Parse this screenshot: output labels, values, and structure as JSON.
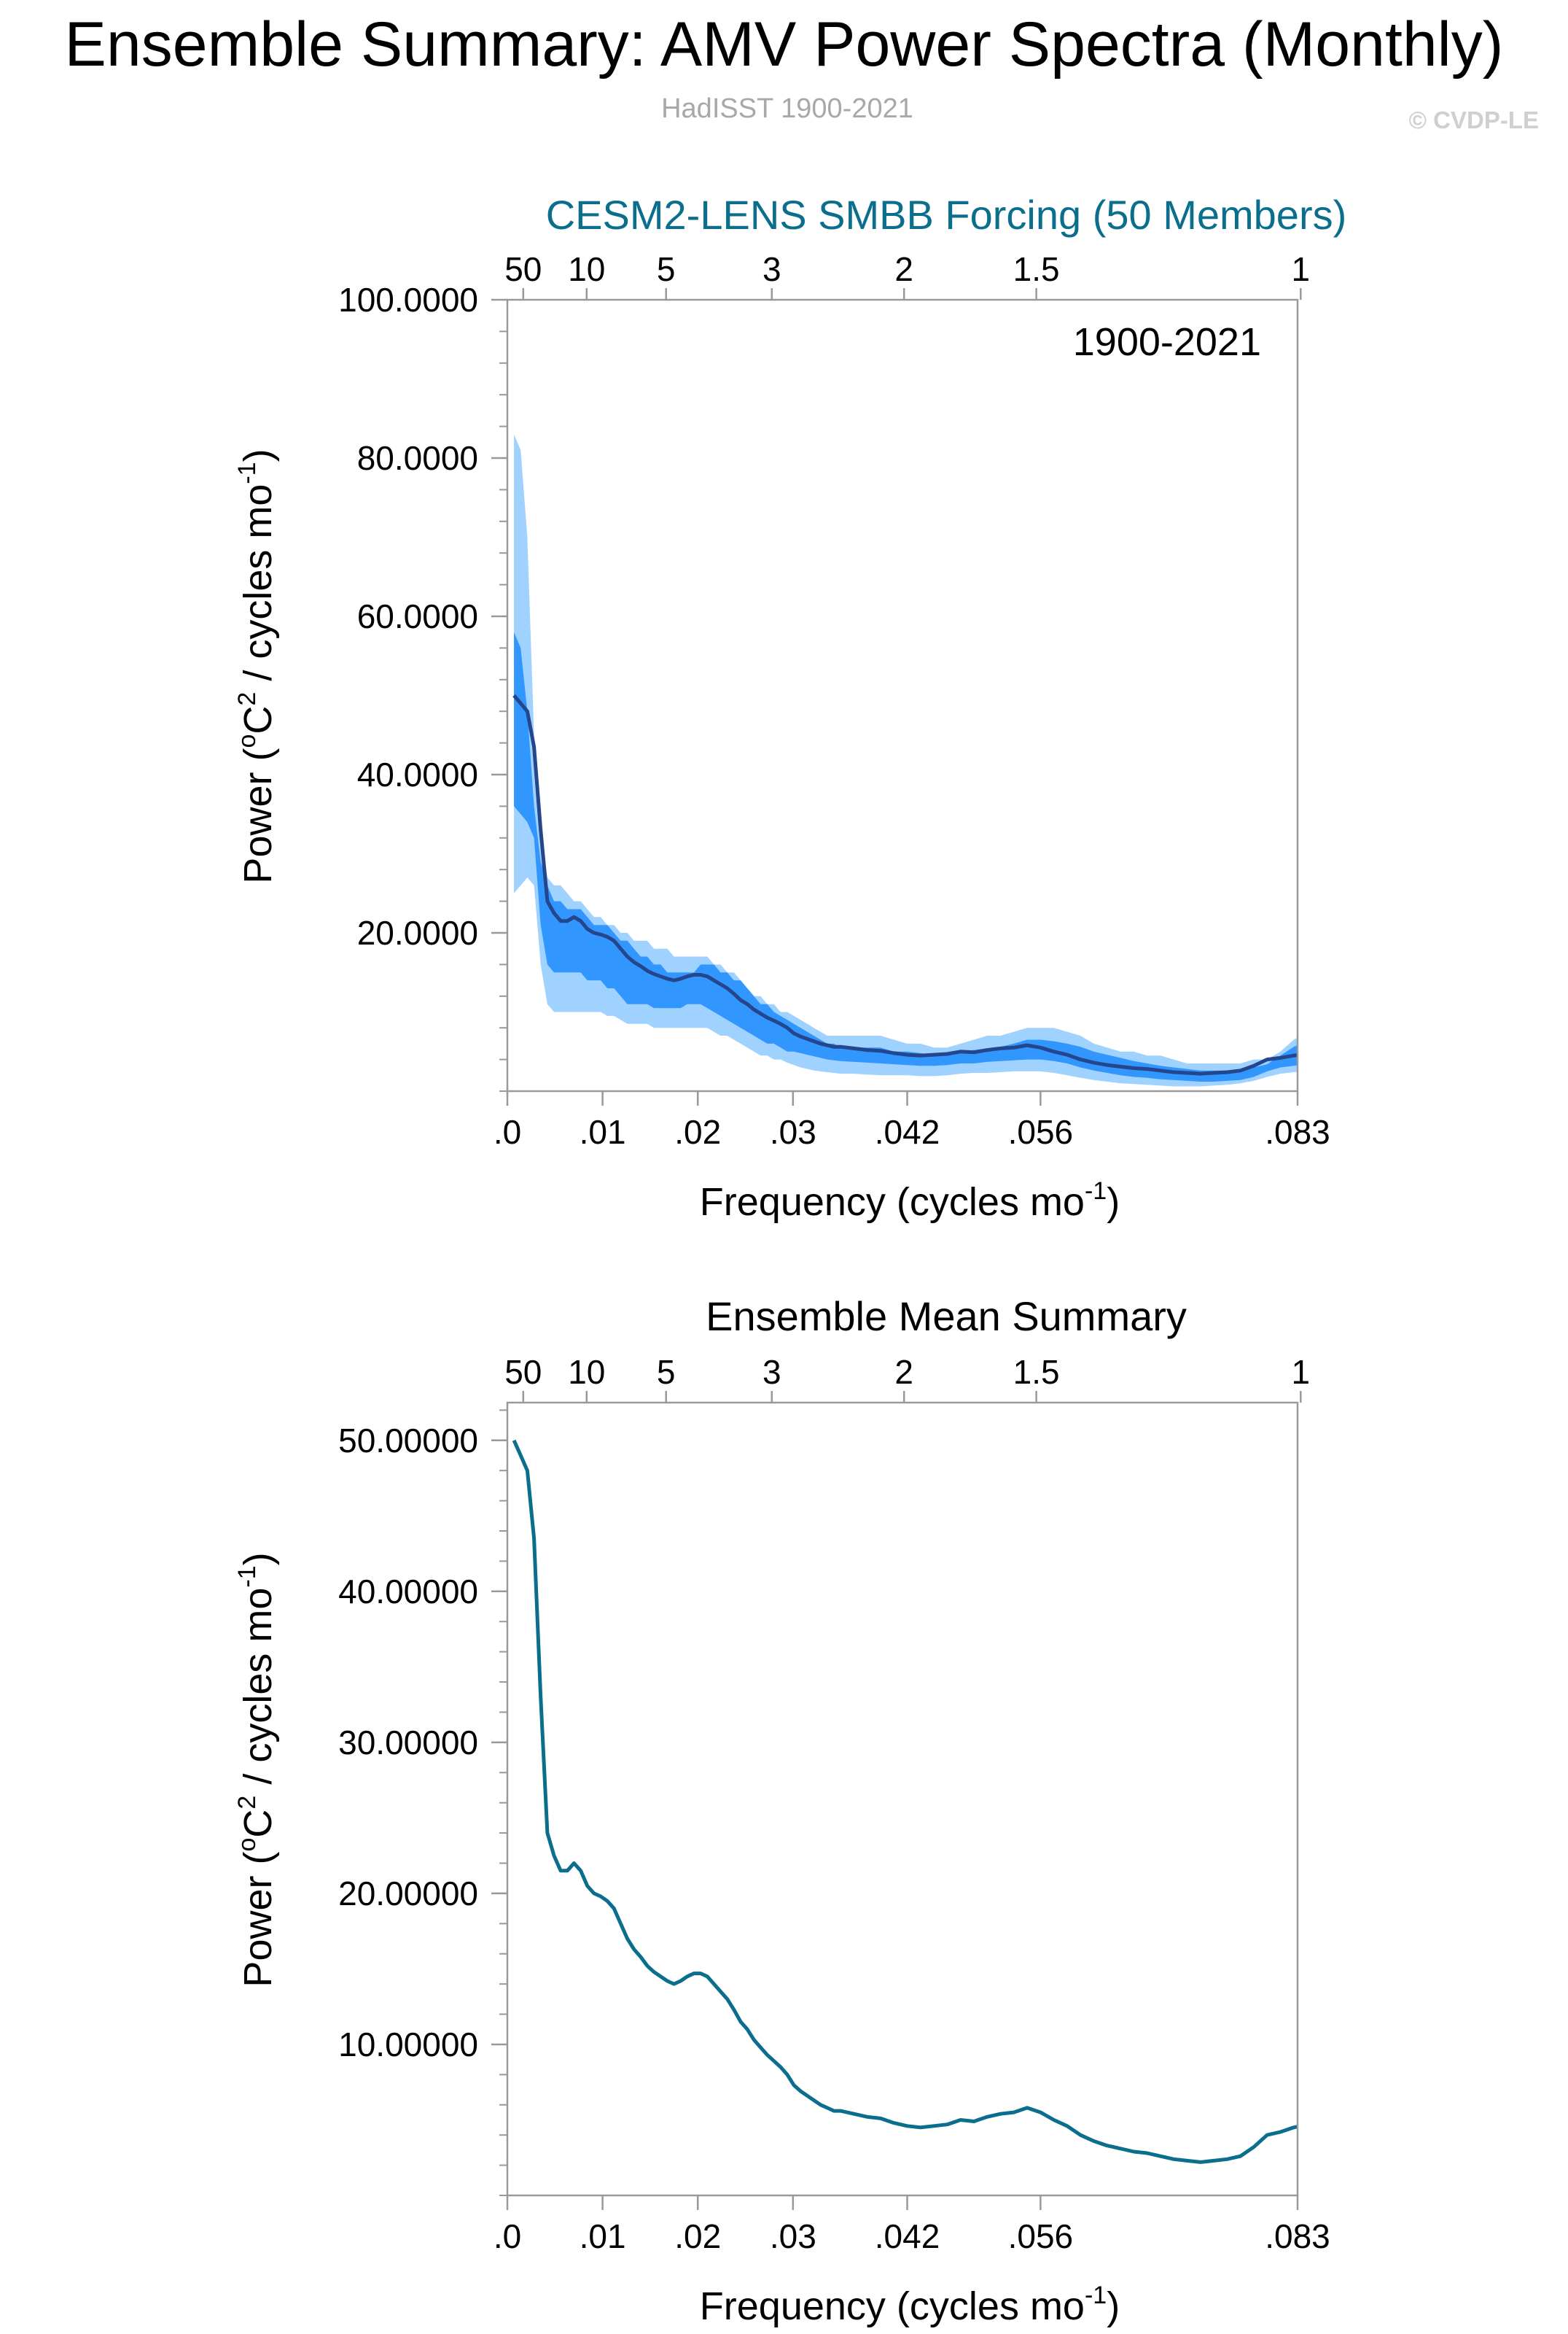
{
  "page": {
    "title": "Ensemble Summary: AMV Power Spectra (Monthly)",
    "subtitle": "HadISST 1900-2021",
    "copyright": "© CVDP-LE"
  },
  "colors": {
    "outer_band": "#a0d2ff",
    "inner_band": "#3296ff",
    "ensemble_line": "#23468c",
    "mean_line": "#0a6e8c",
    "panel1_title": "#0a6e8c"
  },
  "chart_data": [
    {
      "type": "area",
      "title": "CESM2-LENS SMBB Forcing (50 Members)",
      "annotation": "1900-2021",
      "xlabel": "Frequency (cycles mo",
      "xlabel_sup": "-1",
      "xlabel_tail": ")",
      "ylabel": "Power (",
      "ylabel_sup1": "o",
      "ylabel_mid": "C",
      "ylabel_sup2": "2",
      "ylabel_tail": " / cycles mo",
      "ylabel_sup3": "-1",
      "ylabel_end": ")",
      "xlim": [
        0,
        0.083
      ],
      "ylim": [
        0,
        100
      ],
      "ytick_values": [
        20,
        40,
        60,
        80,
        100
      ],
      "ytick_labels": [
        "20.0000",
        "40.0000",
        "60.0000",
        "80.0000",
        "100.0000"
      ],
      "xtick_values": [
        0,
        0.01,
        0.02,
        0.03,
        0.042,
        0.056,
        0.083
      ],
      "xtick_labels": [
        ".0",
        ".01",
        ".02",
        ".03",
        ".042",
        ".056",
        ".083"
      ],
      "top_ticks": [
        {
          "value": 0.00167,
          "label": "50"
        },
        {
          "value": 0.00833,
          "label": "10"
        },
        {
          "value": 0.01667,
          "label": "5"
        },
        {
          "value": 0.02778,
          "label": "3"
        },
        {
          "value": 0.04167,
          "label": "2"
        },
        {
          "value": 0.05556,
          "label": "1.5"
        },
        {
          "value": 0.08333,
          "label": "1"
        }
      ],
      "x": [
        0.0007,
        0.0014,
        0.0021,
        0.0028,
        0.0035,
        0.0042,
        0.0049,
        0.0056,
        0.0063,
        0.007,
        0.0077,
        0.0084,
        0.0091,
        0.0098,
        0.0105,
        0.0112,
        0.0119,
        0.0126,
        0.0133,
        0.014,
        0.0147,
        0.0154,
        0.0161,
        0.0168,
        0.0175,
        0.0182,
        0.0189,
        0.0196,
        0.0203,
        0.021,
        0.0217,
        0.0224,
        0.0231,
        0.0238,
        0.0245,
        0.0252,
        0.0259,
        0.0266,
        0.0273,
        0.028,
        0.0287,
        0.0294,
        0.0301,
        0.0308,
        0.0315,
        0.0322,
        0.0329,
        0.0336,
        0.0343,
        0.035,
        0.0364,
        0.0378,
        0.0392,
        0.0406,
        0.042,
        0.0434,
        0.0448,
        0.0462,
        0.0476,
        0.049,
        0.0504,
        0.0518,
        0.0532,
        0.0546,
        0.056,
        0.0574,
        0.0588,
        0.0602,
        0.0616,
        0.063,
        0.0644,
        0.0658,
        0.0672,
        0.0686,
        0.07,
        0.0714,
        0.0728,
        0.0742,
        0.0756,
        0.077,
        0.0784,
        0.0798,
        0.0812,
        0.0826,
        0.0833
      ],
      "series": [
        {
          "role": "max",
          "values": [
            83,
            81,
            70,
            45,
            33,
            27,
            26,
            26,
            25,
            24,
            24,
            23,
            22,
            22,
            21,
            21,
            20,
            20,
            19,
            19,
            19,
            18,
            18,
            18,
            17,
            17,
            17,
            17,
            17,
            17,
            16,
            16,
            15,
            15,
            14,
            13,
            12,
            12,
            11,
            11,
            10,
            10,
            9.5,
            9,
            8.5,
            8,
            7.5,
            7,
            7,
            7,
            7,
            7,
            7,
            6.5,
            6,
            6,
            5.5,
            5.5,
            6,
            6.5,
            7,
            7,
            7.5,
            8,
            8,
            8,
            7.5,
            7,
            6,
            5.5,
            5,
            5,
            4.5,
            4.5,
            4,
            3.5,
            3.5,
            3.5,
            3.5,
            3.5,
            4,
            4,
            5,
            6.5,
            7
          ]
        },
        {
          "role": "q75",
          "values": [
            58,
            56,
            48,
            36,
            29,
            26,
            24,
            24,
            23,
            23,
            23,
            22,
            21,
            21,
            21,
            20,
            19,
            19,
            18,
            17,
            17,
            16,
            16,
            15,
            15,
            15,
            15,
            15,
            16,
            16,
            16,
            15,
            15,
            14,
            14,
            13,
            12,
            11,
            11,
            10,
            9.5,
            9,
            8.5,
            8,
            7.5,
            7,
            6.5,
            6,
            6,
            5.5,
            5.5,
            5.5,
            5.5,
            5,
            5,
            4.8,
            4.6,
            4.6,
            5,
            5.2,
            5.4,
            5.6,
            6,
            6.5,
            6.5,
            6.3,
            6,
            5.6,
            5,
            4.6,
            4.2,
            3.8,
            3.5,
            3.2,
            3,
            2.8,
            2.6,
            2.6,
            2.6,
            2.8,
            3,
            3.4,
            4.5,
            5.6,
            6
          ]
        },
        {
          "role": "mean",
          "values": [
            50,
            49,
            48,
            43.5,
            33,
            24,
            22.5,
            21.5,
            21.5,
            22,
            21.5,
            20.5,
            20,
            19.8,
            19.5,
            19,
            18,
            17,
            16.3,
            15.8,
            15.2,
            14.8,
            14.5,
            14.2,
            14,
            14.2,
            14.5,
            14.7,
            14.7,
            14.5,
            14,
            13.5,
            13,
            12.3,
            11.5,
            11,
            10.3,
            9.8,
            9.3,
            8.9,
            8.5,
            8.0,
            7.3,
            6.9,
            6.6,
            6.3,
            6.0,
            5.8,
            5.6,
            5.6,
            5.4,
            5.2,
            5.1,
            4.8,
            4.6,
            4.5,
            4.6,
            4.7,
            5.0,
            4.9,
            5.2,
            5.4,
            5.5,
            5.8,
            5.5,
            5.0,
            4.6,
            4.0,
            3.6,
            3.3,
            3.1,
            2.9,
            2.8,
            2.6,
            2.4,
            2.3,
            2.2,
            2.3,
            2.4,
            2.6,
            3.2,
            4.0,
            4.2,
            4.5,
            4.6
          ]
        },
        {
          "role": "q25",
          "values": [
            36,
            35,
            34,
            32,
            21,
            16,
            15,
            15,
            15,
            15,
            15,
            14,
            14,
            14,
            13,
            13,
            12,
            11,
            11,
            11,
            11,
            10.5,
            10.5,
            10.5,
            10.5,
            10.5,
            11,
            11,
            11,
            10.5,
            10,
            9.5,
            9,
            8.5,
            8,
            7.5,
            7,
            6.5,
            6,
            6,
            5.5,
            5,
            5,
            4.8,
            4.6,
            4.4,
            4.2,
            4,
            3.9,
            3.8,
            3.7,
            3.6,
            3.5,
            3.4,
            3.3,
            3.2,
            3.2,
            3.3,
            3.5,
            3.5,
            3.7,
            3.8,
            3.9,
            4,
            4,
            3.8,
            3.5,
            3,
            2.6,
            2.3,
            2,
            1.8,
            1.7,
            1.5,
            1.4,
            1.3,
            1.2,
            1.2,
            1.3,
            1.4,
            1.8,
            2.5,
            3,
            3.2,
            3.3
          ]
        },
        {
          "role": "min",
          "values": [
            25,
            26,
            27,
            26,
            16,
            11,
            10,
            10,
            10,
            10,
            10,
            10,
            10,
            10,
            9.5,
            9.5,
            9,
            8.5,
            8.5,
            8.5,
            8.5,
            8,
            8,
            8,
            8,
            8,
            8,
            8,
            8,
            8,
            7.5,
            7,
            7,
            6.5,
            6,
            5.5,
            5,
            4.5,
            4.5,
            4,
            4,
            3.6,
            3.3,
            3,
            2.8,
            2.6,
            2.5,
            2.4,
            2.3,
            2.2,
            2.2,
            2.1,
            2,
            2,
            2,
            1.9,
            1.9,
            2,
            2.2,
            2.3,
            2.3,
            2.4,
            2.5,
            2.5,
            2.5,
            2.3,
            2,
            1.7,
            1.4,
            1.2,
            1,
            0.9,
            0.8,
            0.7,
            0.6,
            0.6,
            0.6,
            0.7,
            0.8,
            1,
            1.3,
            1.8,
            2.2,
            2.4,
            2.5
          ]
        }
      ]
    },
    {
      "type": "line",
      "title": "Ensemble Mean Summary",
      "xlabel": "Frequency (cycles mo",
      "xlabel_sup": "-1",
      "xlabel_tail": ")",
      "ylabel": "Power (",
      "ylabel_sup1": "o",
      "ylabel_mid": "C",
      "ylabel_sup2": "2",
      "ylabel_tail": " / cycles mo",
      "ylabel_sup3": "-1",
      "ylabel_end": ")",
      "xlim": [
        0,
        0.083
      ],
      "ylim": [
        0,
        52.5
      ],
      "ytick_values": [
        10,
        20,
        30,
        40,
        50
      ],
      "ytick_labels": [
        "10.00000",
        "20.00000",
        "30.00000",
        "40.00000",
        "50.00000"
      ],
      "xtick_values": [
        0,
        0.01,
        0.02,
        0.03,
        0.042,
        0.056,
        0.083
      ],
      "xtick_labels": [
        ".0",
        ".01",
        ".02",
        ".03",
        ".042",
        ".056",
        ".083"
      ],
      "top_ticks": [
        {
          "value": 0.00167,
          "label": "50"
        },
        {
          "value": 0.00833,
          "label": "10"
        },
        {
          "value": 0.01667,
          "label": "5"
        },
        {
          "value": 0.02778,
          "label": "3"
        },
        {
          "value": 0.04167,
          "label": "2"
        },
        {
          "value": 0.05556,
          "label": "1.5"
        },
        {
          "value": 0.08333,
          "label": "1"
        }
      ],
      "x": [
        0.0007,
        0.0014,
        0.0021,
        0.0028,
        0.0035,
        0.0042,
        0.0049,
        0.0056,
        0.0063,
        0.007,
        0.0077,
        0.0084,
        0.0091,
        0.0098,
        0.0105,
        0.0112,
        0.0119,
        0.0126,
        0.0133,
        0.014,
        0.0147,
        0.0154,
        0.0161,
        0.0168,
        0.0175,
        0.0182,
        0.0189,
        0.0196,
        0.0203,
        0.021,
        0.0217,
        0.0224,
        0.0231,
        0.0238,
        0.0245,
        0.0252,
        0.0259,
        0.0266,
        0.0273,
        0.028,
        0.0287,
        0.0294,
        0.0301,
        0.0308,
        0.0315,
        0.0322,
        0.0329,
        0.0336,
        0.0343,
        0.035,
        0.0364,
        0.0378,
        0.0392,
        0.0406,
        0.042,
        0.0434,
        0.0448,
        0.0462,
        0.0476,
        0.049,
        0.0504,
        0.0518,
        0.0532,
        0.0546,
        0.056,
        0.0574,
        0.0588,
        0.0602,
        0.0616,
        0.063,
        0.0644,
        0.0658,
        0.0672,
        0.0686,
        0.07,
        0.0714,
        0.0728,
        0.0742,
        0.0756,
        0.077,
        0.0784,
        0.0798,
        0.0812,
        0.0826,
        0.0833
      ],
      "series": [
        {
          "role": "mean",
          "values": [
            50,
            49,
            48,
            43.5,
            33,
            24,
            22.5,
            21.5,
            21.5,
            22,
            21.5,
            20.5,
            20,
            19.8,
            19.5,
            19,
            18,
            17,
            16.3,
            15.8,
            15.2,
            14.8,
            14.5,
            14.2,
            14,
            14.2,
            14.5,
            14.7,
            14.7,
            14.5,
            14,
            13.5,
            13,
            12.3,
            11.5,
            11,
            10.3,
            9.8,
            9.3,
            8.9,
            8.5,
            8.0,
            7.3,
            6.9,
            6.6,
            6.3,
            6.0,
            5.8,
            5.6,
            5.6,
            5.4,
            5.2,
            5.1,
            4.8,
            4.6,
            4.5,
            4.6,
            4.7,
            5.0,
            4.9,
            5.2,
            5.4,
            5.5,
            5.8,
            5.5,
            5.0,
            4.6,
            4.0,
            3.6,
            3.3,
            3.1,
            2.9,
            2.8,
            2.6,
            2.4,
            2.3,
            2.2,
            2.3,
            2.4,
            2.6,
            3.2,
            4.0,
            4.2,
            4.5,
            4.6
          ]
        }
      ]
    }
  ]
}
